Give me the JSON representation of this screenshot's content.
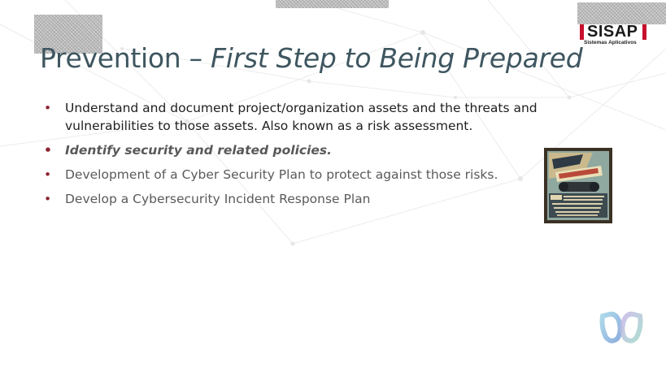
{
  "slide": {
    "title_plain": "Prevention – ",
    "title_italic": "First Step to Being Prepared",
    "bullet_marker": "•",
    "bullets": [
      "Understand and document project/organization assets and the threats and vulnerabilities to those assets. Also known as a risk assessment.",
      "Identify security and related policies.",
      "Development of a Cyber Security Plan to protect against those risks.",
      "Develop a Cybersecurity Incident Response Plan"
    ]
  },
  "logo": {
    "name": "SISAP",
    "tagline": "Sistemas Aplicativos"
  },
  "poster": {
    "icon": "binoculars-poster-image"
  },
  "app_logo": {
    "icon": "interlocking-rings-logo-icon"
  },
  "colors": {
    "title": "#3e5660",
    "bullet_marker": "#8b2230",
    "logo_accent": "#c8102e",
    "body_text": "#1e1e1e",
    "secondary_text": "#5a5a5a"
  }
}
